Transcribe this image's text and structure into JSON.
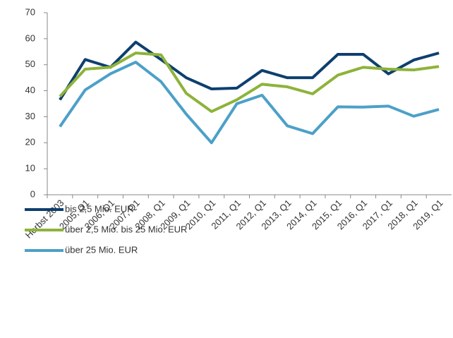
{
  "chart_data": {
    "type": "line",
    "categories": [
      "Herbst 2003",
      "2005, Q1",
      "2006, Q1",
      "2007, Q1",
      "2008, Q1",
      "2009, Q1",
      "2010, Q1",
      "2011, Q1",
      "2012, Q1",
      "2013, Q1",
      "2014, Q1",
      "2015, Q1",
      "2016, Q1",
      "2017, Q1",
      "2018, Q1",
      "2019, Q1"
    ],
    "series": [
      {
        "name": "bis 2,5 Mio. EUR",
        "color": "#0e3f6e",
        "values": [
          36.5,
          52,
          49,
          58.7,
          52,
          45,
          40.7,
          41,
          47.8,
          45,
          45,
          54,
          54,
          46.5,
          51.8,
          54.5
        ]
      },
      {
        "name": "über 2,5 Mio. bis 25 Mio. EUR",
        "color": "#8db33a",
        "values": [
          37.8,
          48.3,
          49,
          54.5,
          53.8,
          39,
          32,
          36.5,
          42.5,
          41.5,
          38.8,
          46,
          49,
          48.3,
          48,
          49.3
        ]
      },
      {
        "name": "über 25 Mio. EUR",
        "color": "#4ca0c8",
        "values": [
          26.2,
          40.3,
          46.5,
          51,
          43.5,
          31,
          20,
          35,
          38.3,
          26.5,
          23.5,
          33.8,
          33.7,
          34.1,
          30.2,
          32.8
        ]
      }
    ],
    "ylim": [
      0,
      70
    ],
    "yticks": [
      0,
      10,
      20,
      30,
      40,
      50,
      60,
      70
    ],
    "grid": false,
    "legend": "bottom"
  }
}
